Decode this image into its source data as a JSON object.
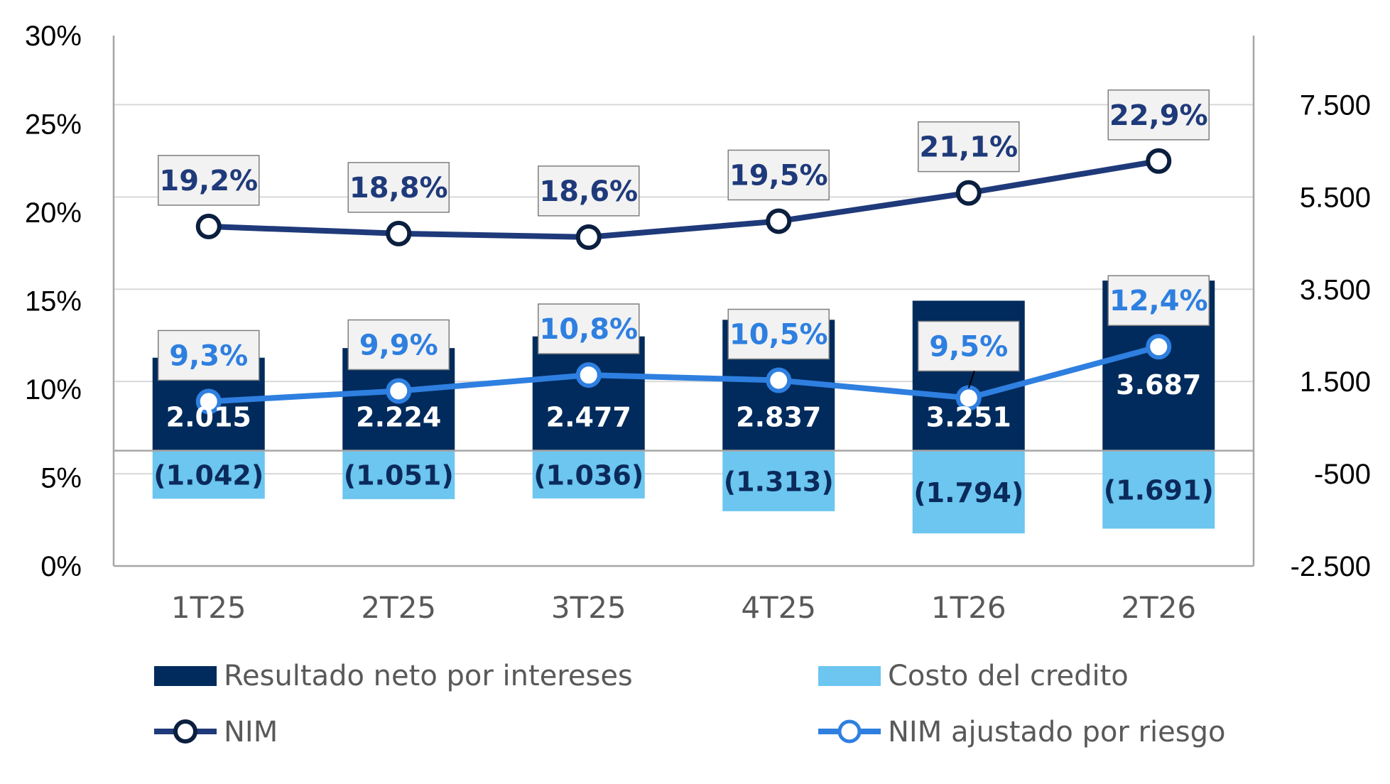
{
  "colors": {
    "nii_bar": "#002B5C",
    "cost_bar": "#6CC6EF",
    "nim_line": "#1F3A7A",
    "nim_marker_stroke": "#0B1F3F",
    "adj_line": "#2E7FE0",
    "label_box_fill": "#F2F2F2",
    "label_box_stroke": "#7F7F7F",
    "grid": "#D9D9D9",
    "axis": "#A6A6A6"
  },
  "chart_data": {
    "type": "bar",
    "categories": [
      "1T25",
      "2T25",
      "3T25",
      "4T25",
      "1T26",
      "2T26"
    ],
    "y_left": {
      "min": 0,
      "max": 30,
      "ticks": [
        0,
        5,
        10,
        15,
        20,
        25,
        30
      ],
      "tick_labels": [
        "0%",
        "5%",
        "10%",
        "15%",
        "20%",
        "25%",
        "30%"
      ]
    },
    "y_right": {
      "min": -2500,
      "max": 9000,
      "ticks": [
        -2500,
        -500,
        1500,
        3500,
        5500,
        7500
      ],
      "tick_labels": [
        "-2.500",
        "-500",
        "1.500",
        "3.500",
        "5.500",
        "7.500"
      ]
    },
    "grid": true,
    "legend_position": "bottom",
    "series": [
      {
        "name": "Resultado neto por intereses",
        "kind": "bar",
        "axis": "right",
        "values": [
          2015,
          2224,
          2477,
          2837,
          3251,
          3687
        ],
        "labels": [
          "2.015",
          "2.224",
          "2.477",
          "2.837",
          "3.251",
          "3.687"
        ]
      },
      {
        "name": "Costo del credito",
        "kind": "bar",
        "axis": "right",
        "values": [
          -1042,
          -1051,
          -1036,
          -1313,
          -1794,
          -1691
        ],
        "labels": [
          "(1.042)",
          "(1.051)",
          "(1.036)",
          "(1.313)",
          "(1.794)",
          "(1.691)"
        ]
      },
      {
        "name": "NIM",
        "kind": "line",
        "axis": "left",
        "values": [
          19.2,
          18.8,
          18.6,
          19.5,
          21.1,
          22.9
        ],
        "labels": [
          "19,2%",
          "18,8%",
          "18,6%",
          "19,5%",
          "21,1%",
          "22,9%"
        ]
      },
      {
        "name": "NIM ajustado por riesgo",
        "kind": "line",
        "axis": "left",
        "values": [
          9.3,
          9.9,
          10.8,
          10.5,
          9.5,
          12.4
        ],
        "labels": [
          "9,3%",
          "9,9%",
          "10,8%",
          "10,5%",
          "9,5%",
          "12,4%"
        ]
      }
    ]
  }
}
